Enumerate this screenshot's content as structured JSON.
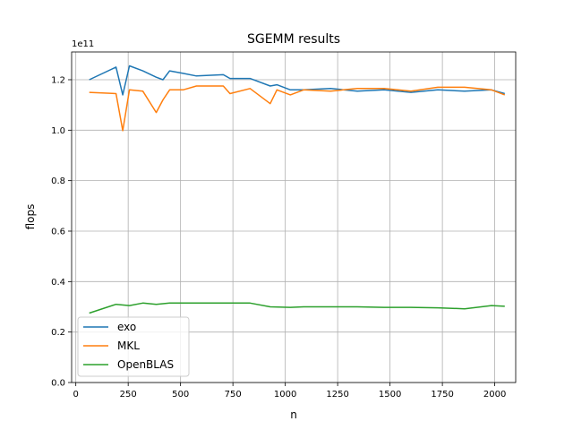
{
  "chart_data": {
    "type": "line",
    "title": "SGEMM results",
    "xlabel": "n",
    "ylabel": "flops",
    "y_offset_label": "1e11",
    "xlim": [
      -20,
      2100
    ],
    "ylim": [
      0,
      1.31
    ],
    "y_scale_multiplier": 100000000000.0,
    "xticks": [
      0,
      250,
      500,
      750,
      1000,
      1250,
      1500,
      1750,
      2000
    ],
    "xtick_labels": [
      "0",
      "250",
      "500",
      "750",
      "1000",
      "1250",
      "1500",
      "1750",
      "2000"
    ],
    "yticks": [
      0,
      0.2,
      0.4,
      0.6,
      0.8,
      1.0,
      1.2
    ],
    "ytick_labels": [
      "0.0",
      "0.2",
      "0.4",
      "0.6",
      "0.8",
      "1.0",
      "1.2"
    ],
    "grid": true,
    "legend_position": "lower-left",
    "series": [
      {
        "name": "exo",
        "color": "#1f77b4",
        "x": [
          64,
          192,
          224,
          256,
          320,
          384,
          416,
          448,
          512,
          576,
          704,
          736,
          832,
          928,
          960,
          1024,
          1088,
          1216,
          1344,
          1472,
          1600,
          1728,
          1856,
          1984,
          2048
        ],
        "y": [
          1.2,
          1.25,
          1.14,
          1.255,
          1.235,
          1.21,
          1.2,
          1.235,
          1.225,
          1.215,
          1.22,
          1.205,
          1.205,
          1.175,
          1.18,
          1.16,
          1.16,
          1.165,
          1.155,
          1.16,
          1.15,
          1.16,
          1.155,
          1.16,
          1.145
        ]
      },
      {
        "name": "MKL",
        "color": "#ff7f0e",
        "x": [
          64,
          192,
          224,
          256,
          320,
          384,
          416,
          448,
          512,
          576,
          704,
          736,
          832,
          928,
          960,
          1024,
          1088,
          1216,
          1344,
          1472,
          1600,
          1728,
          1856,
          1984,
          2048
        ],
        "y": [
          1.15,
          1.145,
          0.998,
          1.16,
          1.155,
          1.07,
          1.12,
          1.16,
          1.16,
          1.175,
          1.175,
          1.145,
          1.165,
          1.105,
          1.16,
          1.14,
          1.16,
          1.155,
          1.165,
          1.165,
          1.155,
          1.17,
          1.17,
          1.16,
          1.14
        ]
      },
      {
        "name": "OpenBLAS",
        "color": "#2ca02c",
        "x": [
          64,
          192,
          256,
          320,
          384,
          448,
          512,
          576,
          704,
          832,
          928,
          1024,
          1088,
          1216,
          1344,
          1472,
          1600,
          1728,
          1856,
          1984,
          2048
        ],
        "y": [
          0.275,
          0.31,
          0.305,
          0.315,
          0.31,
          0.315,
          0.315,
          0.315,
          0.315,
          0.315,
          0.3,
          0.298,
          0.3,
          0.3,
          0.3,
          0.298,
          0.298,
          0.296,
          0.292,
          0.305,
          0.302
        ]
      }
    ]
  }
}
